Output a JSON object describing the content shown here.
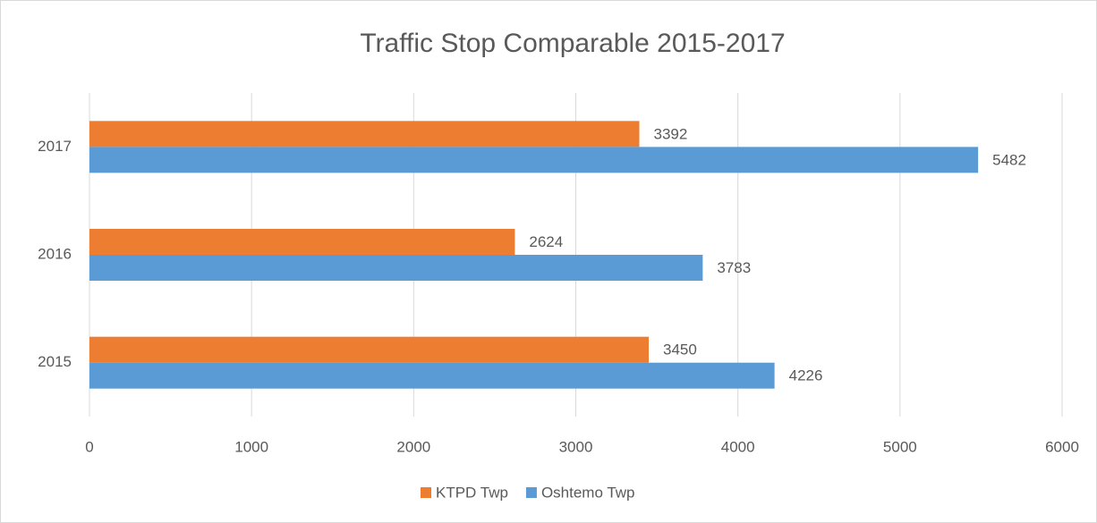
{
  "chart_data": {
    "type": "bar",
    "orientation": "horizontal",
    "title": "Traffic Stop Comparable 2015-2017",
    "categories": [
      "2015",
      "2016",
      "2017"
    ],
    "series": [
      {
        "name": "KTPD Twp",
        "color": "#ED7D31",
        "values": [
          3450,
          2624,
          3392
        ]
      },
      {
        "name": "Oshtemo Twp",
        "color": "#5B9BD5",
        "values": [
          4226,
          3783,
          5482
        ]
      }
    ],
    "xlim": [
      0,
      6000
    ],
    "xticks": [
      0,
      1000,
      2000,
      3000,
      4000,
      5000,
      6000
    ],
    "grid": true,
    "legend": "bottom",
    "data_labels": true
  }
}
